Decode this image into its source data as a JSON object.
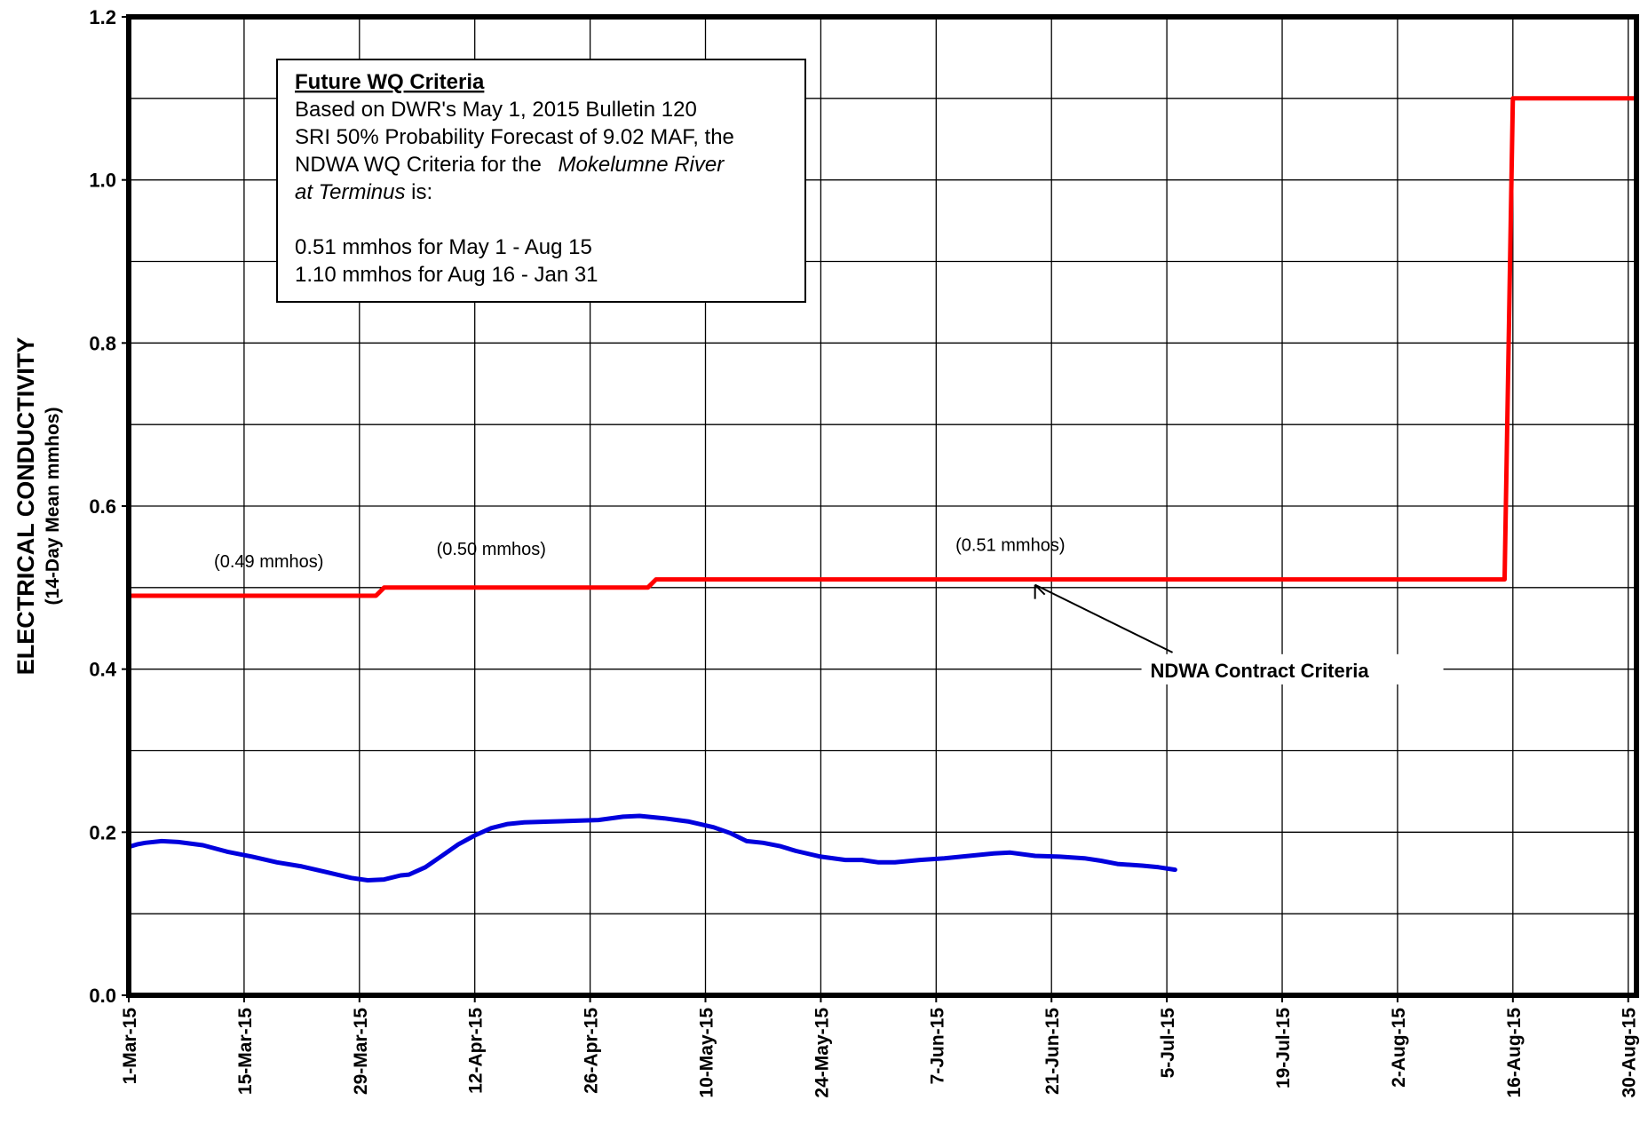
{
  "chart_data": {
    "type": "line",
    "ylabel": "ELECTRICAL CONDUCTIVITY",
    "ylabel_sub": "(14-Day Mean mmhos)",
    "ylim": [
      0,
      1.2
    ],
    "y_ticks": [
      "0.0",
      "0.2",
      "0.4",
      "0.6",
      "0.8",
      "1.0",
      "1.2"
    ],
    "xlim": [
      "2015-03-01",
      "2015-08-31"
    ],
    "x_ticks": [
      {
        "date": "2015-03-01",
        "label": "1-Mar-15"
      },
      {
        "date": "2015-03-15",
        "label": "15-Mar-15"
      },
      {
        "date": "2015-03-29",
        "label": "29-Mar-15"
      },
      {
        "date": "2015-04-12",
        "label": "12-Apr-15"
      },
      {
        "date": "2015-04-26",
        "label": "26-Apr-15"
      },
      {
        "date": "2015-05-10",
        "label": "10-May-15"
      },
      {
        "date": "2015-05-24",
        "label": "24-May-15"
      },
      {
        "date": "2015-06-07",
        "label": "7-Jun-15"
      },
      {
        "date": "2015-06-21",
        "label": "21-Jun-15"
      },
      {
        "date": "2015-07-05",
        "label": "5-Jul-15"
      },
      {
        "date": "2015-07-19",
        "label": "19-Jul-15"
      },
      {
        "date": "2015-08-02",
        "label": "2-Aug-15"
      },
      {
        "date": "2015-08-16",
        "label": "16-Aug-15"
      },
      {
        "date": "2015-08-30",
        "label": "30-Aug-15"
      }
    ],
    "grid": true,
    "series": [
      {
        "name": "",
        "color": "#0000dd",
        "points": [
          [
            "2015-03-01",
            0.182
          ],
          [
            "2015-03-02",
            0.185
          ],
          [
            "2015-03-03",
            0.187
          ],
          [
            "2015-03-05",
            0.189
          ],
          [
            "2015-03-07",
            0.188
          ],
          [
            "2015-03-10",
            0.184
          ],
          [
            "2015-03-13",
            0.176
          ],
          [
            "2015-03-16",
            0.17
          ],
          [
            "2015-03-19",
            0.163
          ],
          [
            "2015-03-22",
            0.158
          ],
          [
            "2015-03-25",
            0.151
          ],
          [
            "2015-03-28",
            0.144
          ],
          [
            "2015-03-30",
            0.141
          ],
          [
            "2015-04-01",
            0.142
          ],
          [
            "2015-04-03",
            0.147
          ],
          [
            "2015-04-04",
            0.148
          ],
          [
            "2015-04-06",
            0.157
          ],
          [
            "2015-04-08",
            0.171
          ],
          [
            "2015-04-10",
            0.185
          ],
          [
            "2015-04-12",
            0.196
          ],
          [
            "2015-04-14",
            0.205
          ],
          [
            "2015-04-16",
            0.21
          ],
          [
            "2015-04-18",
            0.212
          ],
          [
            "2015-04-21",
            0.213
          ],
          [
            "2015-04-24",
            0.214
          ],
          [
            "2015-04-27",
            0.215
          ],
          [
            "2015-04-30",
            0.219
          ],
          [
            "2015-05-02",
            0.22
          ],
          [
            "2015-05-05",
            0.217
          ],
          [
            "2015-05-08",
            0.213
          ],
          [
            "2015-05-11",
            0.206
          ],
          [
            "2015-05-13",
            0.199
          ],
          [
            "2015-05-15",
            0.189
          ],
          [
            "2015-05-17",
            0.187
          ],
          [
            "2015-05-19",
            0.183
          ],
          [
            "2015-05-21",
            0.177
          ],
          [
            "2015-05-24",
            0.17
          ],
          [
            "2015-05-27",
            0.166
          ],
          [
            "2015-05-29",
            0.166
          ],
          [
            "2015-05-31",
            0.163
          ],
          [
            "2015-06-02",
            0.163
          ],
          [
            "2015-06-05",
            0.166
          ],
          [
            "2015-06-08",
            0.168
          ],
          [
            "2015-06-11",
            0.171
          ],
          [
            "2015-06-14",
            0.174
          ],
          [
            "2015-06-16",
            0.175
          ],
          [
            "2015-06-19",
            0.171
          ],
          [
            "2015-06-22",
            0.17
          ],
          [
            "2015-06-25",
            0.168
          ],
          [
            "2015-06-27",
            0.165
          ],
          [
            "2015-06-29",
            0.161
          ],
          [
            "2015-07-02",
            0.159
          ],
          [
            "2015-07-04",
            0.157
          ],
          [
            "2015-07-06",
            0.154
          ]
        ]
      },
      {
        "name": "NDWA Contract Criteria",
        "color": "#ff0000",
        "points": [
          [
            "2015-03-01",
            0.49
          ],
          [
            "2015-03-31",
            0.49
          ],
          [
            "2015-04-01",
            0.5
          ],
          [
            "2015-05-03",
            0.5
          ],
          [
            "2015-05-04",
            0.51
          ],
          [
            "2015-08-15",
            0.51
          ],
          [
            "2015-08-16",
            1.1
          ],
          [
            "2015-08-31",
            1.1
          ]
        ]
      }
    ],
    "annotations": [
      {
        "text": "(0.49 mmhos)",
        "date": "2015-03-18",
        "y": 0.525
      },
      {
        "text": "(0.50 mmhos)",
        "date": "2015-04-14",
        "y": 0.54
      },
      {
        "text": "(0.51 mmhos)",
        "date": "2015-06-16",
        "y": 0.545
      },
      {
        "text": "NDWA Contract Criteria",
        "date": "2015-07-03",
        "y": 0.39
      }
    ],
    "info_box": {
      "title": "Future WQ Criteria",
      "line1": "Based on DWR's May 1, 2015 Bulletin 120",
      "line2": "SRI 50% Probability Forecast of 9.02 MAF, the",
      "line3_prefix": "NDWA WQ Criteria for the",
      "line3_italic": "Mokelumne River",
      "line4_italic": "at Terminus",
      "line4_suffix": " is:",
      "line5": "0.51 mmhos for May 1 - Aug 15",
      "line6": "1.10 mmhos for Aug 16 - Jan 31"
    }
  }
}
